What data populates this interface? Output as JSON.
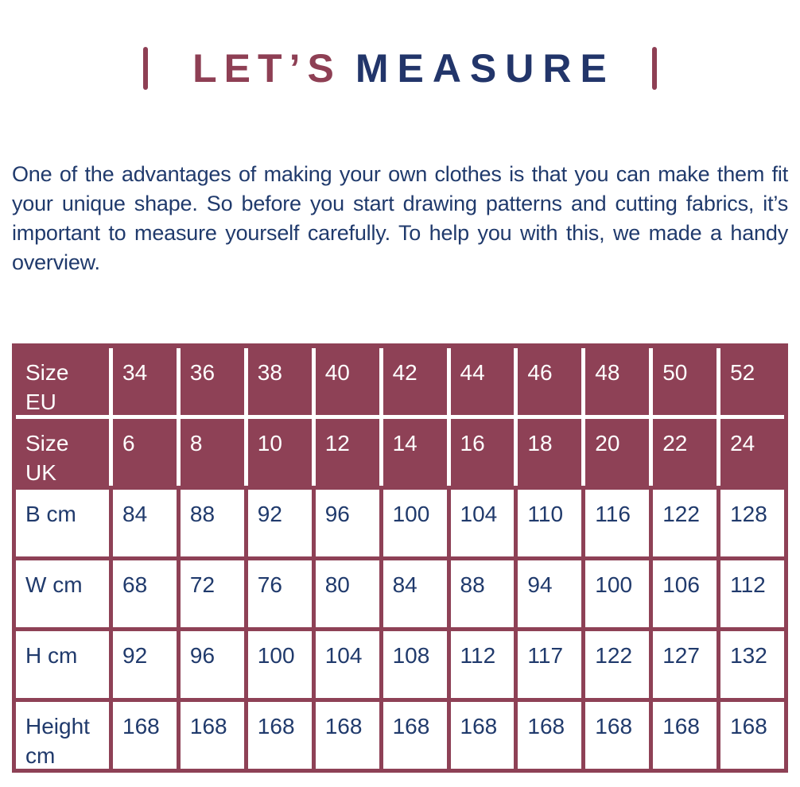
{
  "title": {
    "word1": "LET’S",
    "word2": "MEASURE"
  },
  "intro": "One of the advantages of making your own clothes is that you can make them fit your unique shape. So before you start drawing patterns and cutting fabrics, it’s important to measure yourself carefully. To help you with this, we made a handy overview.",
  "colors": {
    "maroon": "#8e4156",
    "navy": "#203a6c",
    "title_red": "#8e3f54",
    "title_navy": "#22356a",
    "header_text": "#ffffff"
  },
  "size_table": {
    "header_rows": [
      {
        "label": "Size EU",
        "values": [
          "34",
          "36",
          "38",
          "40",
          "42",
          "44",
          "46",
          "48",
          "50",
          "52"
        ]
      },
      {
        "label": "Size UK",
        "values": [
          "6",
          "8",
          "10",
          "12",
          "14",
          "16",
          "18",
          "20",
          "22",
          "24"
        ]
      }
    ],
    "body_rows": [
      {
        "label": "B cm",
        "values": [
          "84",
          "88",
          "92",
          "96",
          "100",
          "104",
          "110",
          "116",
          "122",
          "128"
        ]
      },
      {
        "label": "W cm",
        "values": [
          "68",
          "72",
          "76",
          "80",
          "84",
          "88",
          "94",
          "100",
          "106",
          "112"
        ]
      },
      {
        "label": "H cm",
        "values": [
          "92",
          "96",
          "100",
          "104",
          "108",
          "112",
          "117",
          "122",
          "127",
          "132"
        ]
      },
      {
        "label": "Height cm",
        "values": [
          "168",
          "168",
          "168",
          "168",
          "168",
          "168",
          "168",
          "168",
          "168",
          "168"
        ]
      }
    ]
  }
}
